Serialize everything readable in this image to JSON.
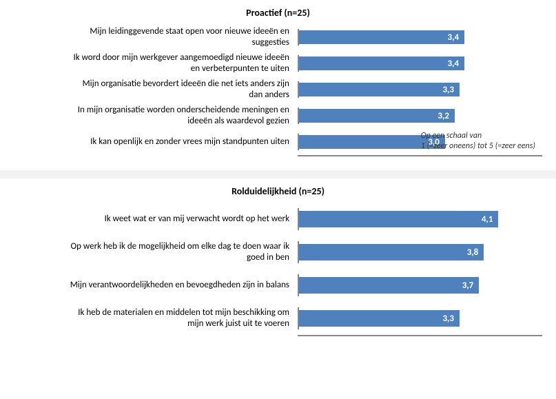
{
  "charts": [
    {
      "title": "Proactief (n=25)",
      "type": "bar-horizontal",
      "xlim": [
        0,
        5
      ],
      "bar_color": "#4f81bd",
      "axis_color": "#868686",
      "value_color": "#ffffff",
      "label_fontsize": 13,
      "title_fontsize": 14,
      "rows": [
        {
          "label_line1": "Mijn leidinggevende staat open voor nieuwe ideeën en",
          "label_line2": "suggesties",
          "value": 3.4,
          "value_text": "3,4"
        },
        {
          "label_line1": "Ik word door mijn werkgever aangemoedigd nieuwe ideeën",
          "label_line2": "en verbeterpunten te uiten",
          "value": 3.4,
          "value_text": "3,4"
        },
        {
          "label_line1": "Mijn organisatie bevordert ideeën die net iets anders zijn",
          "label_line2": "dan anders",
          "value": 3.3,
          "value_text": "3,3"
        },
        {
          "label_line1": "In mijn organisatie worden onderscheidende meningen en",
          "label_line2": "ideeën als waardevol gezien",
          "value": 3.2,
          "value_text": "3,2"
        },
        {
          "label_line1": "Ik kan openlijk en zonder vrees mijn standpunten uiten",
          "label_line2": "",
          "value": 3.0,
          "value_text": "3,0"
        }
      ],
      "footnote_line1": "Op een schaal van",
      "footnote_line2": "1 (=zeer oneens) tot 5 (=zeer eens)"
    },
    {
      "title": "Rolduidelijkheid (n=25)",
      "type": "bar-horizontal",
      "xlim": [
        0,
        5
      ],
      "bar_color": "#4f81bd",
      "axis_color": "#868686",
      "value_color": "#ffffff",
      "label_fontsize": 13,
      "title_fontsize": 14,
      "rows": [
        {
          "label_line1": "Ik weet wat er van mij verwacht wordt op het werk",
          "label_line2": "",
          "value": 4.1,
          "value_text": "4,1"
        },
        {
          "label_line1": "Op werk heb ik de mogelijkheid om elke dag te doen waar ik",
          "label_line2": "goed in ben",
          "value": 3.8,
          "value_text": "3,8"
        },
        {
          "label_line1": "Mijn verantwoordelijkheden en bevoegdheden zijn in balans",
          "label_line2": "",
          "value": 3.7,
          "value_text": "3,7"
        },
        {
          "label_line1": "Ik heb de materialen en middelen tot mijn beschikking om",
          "label_line2": "mijn werk juist uit te voeren",
          "value": 3.3,
          "value_text": "3,3"
        }
      ]
    }
  ],
  "separator_color": "#f2f2f2"
}
